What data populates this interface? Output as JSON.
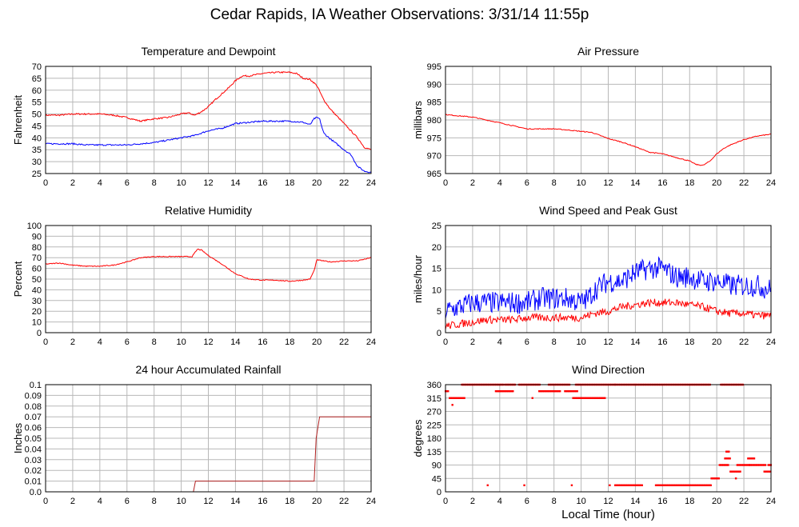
{
  "title": "Cedar Rapids, IA Weather Observations: 3/31/14 11:55p",
  "xlabel": "Local Time (hour)",
  "colors": {
    "red": "#ff0000",
    "blue": "#0000ff",
    "grid": "#b8b8b8"
  },
  "chart_data": [
    {
      "id": "temp",
      "type": "line",
      "title": "Temperature and Dewpoint",
      "ylabel": "Fahrenheit",
      "xlim": [
        0,
        24
      ],
      "ylim": [
        25,
        70
      ],
      "xticks": [
        0,
        2,
        4,
        6,
        8,
        10,
        12,
        14,
        16,
        18,
        20,
        22,
        24
      ],
      "yticks": [
        25,
        30,
        35,
        40,
        45,
        50,
        55,
        60,
        65,
        70
      ],
      "grid": true,
      "series": [
        {
          "color": "#ff0000",
          "noise": 0.3,
          "x": [
            0,
            1,
            2,
            3,
            4,
            5,
            6,
            7,
            8,
            9,
            10,
            10.5,
            11,
            11.5,
            12,
            12.5,
            13,
            13.5,
            14,
            14.5,
            15,
            16,
            17,
            18,
            18.5,
            19,
            19.5,
            20,
            20.5,
            21,
            22,
            23,
            23.5,
            24
          ],
          "y": [
            49.5,
            49.5,
            50,
            50,
            50,
            49.5,
            48.5,
            47,
            48,
            48.5,
            50,
            50.5,
            49.5,
            51,
            53,
            56,
            58.5,
            61,
            64,
            66,
            66,
            67,
            67.5,
            67.5,
            67,
            65,
            64.5,
            62,
            56,
            52,
            46,
            40,
            36,
            35
          ]
        },
        {
          "color": "#0000ff",
          "noise": 0.3,
          "x": [
            0,
            1,
            2,
            3,
            4,
            5,
            6,
            7,
            8,
            9,
            10,
            11,
            11.5,
            12,
            13,
            14,
            15,
            16,
            17,
            18,
            19,
            19.5,
            19.8,
            20,
            20.2,
            20.5,
            21,
            22,
            22.5,
            23,
            23.5,
            24
          ],
          "y": [
            37.5,
            37.5,
            37.5,
            37,
            37,
            37,
            37,
            37.5,
            38,
            39,
            40,
            41,
            42,
            43,
            44,
            46,
            46.5,
            47,
            47,
            47,
            46.5,
            45.5,
            48,
            48.5,
            48,
            42,
            39.5,
            35,
            33,
            28,
            26,
            25.5
          ]
        }
      ]
    },
    {
      "id": "pressure",
      "type": "line",
      "title": "Air Pressure",
      "ylabel": "millibars",
      "xlim": [
        0,
        24
      ],
      "ylim": [
        965,
        995
      ],
      "xticks": [
        0,
        2,
        4,
        6,
        8,
        10,
        12,
        14,
        16,
        18,
        20,
        22,
        24
      ],
      "yticks": [
        965,
        970,
        975,
        980,
        985,
        990,
        995
      ],
      "grid": true,
      "series": [
        {
          "color": "#ff0000",
          "noise": 0.12,
          "x": [
            0,
            2,
            4,
            6,
            7,
            8,
            9,
            10,
            10.8,
            12,
            13,
            14,
            15,
            16,
            17,
            18,
            18.5,
            19,
            19.5,
            20,
            20.5,
            21,
            22,
            23,
            24
          ],
          "y": [
            981.5,
            980.8,
            979.2,
            977.5,
            977.5,
            977.5,
            977.2,
            976.8,
            976.5,
            974.8,
            973.8,
            972.5,
            971,
            970.5,
            969.5,
            968.5,
            967.5,
            967.3,
            968.5,
            970.5,
            972,
            973,
            974.5,
            975.5,
            976
          ]
        }
      ]
    },
    {
      "id": "rh",
      "type": "line",
      "title": "Relative Humidity",
      "ylabel": "Percent",
      "xlim": [
        0,
        24
      ],
      "ylim": [
        0,
        100
      ],
      "xticks": [
        0,
        2,
        4,
        6,
        8,
        10,
        12,
        14,
        16,
        18,
        20,
        22,
        24
      ],
      "yticks": [
        0,
        10,
        20,
        30,
        40,
        50,
        60,
        70,
        80,
        90,
        100
      ],
      "grid": true,
      "series": [
        {
          "color": "#ff0000",
          "noise": 0.4,
          "x": [
            0,
            1,
            2,
            3,
            4,
            5,
            6,
            7,
            8,
            9,
            10,
            10.8,
            11.2,
            11.5,
            12,
            13,
            14,
            15,
            16,
            17,
            18,
            19,
            19.5,
            19.8,
            20,
            20.5,
            21,
            22,
            23,
            24
          ],
          "y": [
            64,
            65,
            63,
            62,
            62,
            63,
            66,
            70,
            71,
            71,
            71,
            71,
            78,
            77,
            72,
            64,
            55,
            50,
            49,
            49,
            48,
            49,
            50,
            58,
            68,
            67,
            66,
            67,
            67,
            70
          ]
        }
      ]
    },
    {
      "id": "wind",
      "type": "line",
      "title": "Wind Speed and Peak Gust",
      "ylabel": "miles/hour",
      "xlim": [
        0,
        24
      ],
      "ylim": [
        0,
        25
      ],
      "xticks": [
        0,
        2,
        4,
        6,
        8,
        10,
        12,
        14,
        16,
        18,
        20,
        22,
        24
      ],
      "yticks": [
        0,
        5,
        10,
        15,
        20,
        25
      ],
      "grid": true,
      "series": [
        {
          "color": "#0000ff",
          "noise": 2.6,
          "x": [
            0,
            1,
            2,
            3,
            4,
            5,
            6,
            7,
            8,
            9,
            10,
            10.5,
            11,
            12,
            13,
            14,
            15,
            16,
            17,
            18,
            19,
            20,
            21,
            22,
            23,
            24
          ],
          "y": [
            5,
            6,
            7,
            7,
            7,
            7,
            7,
            8,
            8,
            8,
            7,
            8,
            10,
            12,
            12,
            14,
            15,
            15,
            13,
            13,
            12,
            12,
            11,
            11,
            11,
            10
          ]
        },
        {
          "color": "#ff0000",
          "noise": 0.9,
          "x": [
            0,
            1,
            2,
            3,
            4,
            5,
            6,
            7,
            8,
            9,
            10,
            11,
            12,
            13,
            14,
            15,
            16,
            17,
            18,
            19,
            20,
            21,
            22,
            23,
            24
          ],
          "y": [
            1.5,
            2,
            2.5,
            3,
            3,
            3,
            3.5,
            3.5,
            3.5,
            3.5,
            3.5,
            4.5,
            5,
            6,
            6.5,
            7,
            7,
            7,
            6.5,
            6,
            5,
            4.5,
            4.5,
            4,
            4
          ]
        }
      ]
    },
    {
      "id": "rain",
      "type": "line",
      "title": "24 hour Accumulated Rainfall",
      "ylabel": "Inches",
      "xlim": [
        0,
        24
      ],
      "ylim": [
        0,
        0.1
      ],
      "xticks": [
        0,
        2,
        4,
        6,
        8,
        10,
        12,
        14,
        16,
        18,
        20,
        22,
        24
      ],
      "yticks": [
        0,
        0.01,
        0.02,
        0.03,
        0.04,
        0.05,
        0.06,
        0.07,
        0.08,
        0.09,
        0.1
      ],
      "ytick_labels": [
        "0.0",
        "0.01",
        "0.02",
        "0.03",
        "0.04",
        "0.05",
        "0.06",
        "0.07",
        "0.08",
        "0.09",
        "0.1"
      ],
      "grid": true,
      "series": [
        {
          "color": "#b22222",
          "noise": 0,
          "x": [
            0,
            10.9,
            11.05,
            19.8,
            19.95,
            20.2,
            24
          ],
          "y": [
            0,
            0,
            0.01,
            0.01,
            0.05,
            0.07,
            0.07
          ]
        }
      ]
    },
    {
      "id": "dir",
      "type": "scatter",
      "title": "Wind Direction",
      "ylabel": "degrees",
      "xlim": [
        0,
        24
      ],
      "ylim": [
        0,
        360
      ],
      "xticks": [
        0,
        2,
        4,
        6,
        8,
        10,
        12,
        14,
        16,
        18,
        20,
        22,
        24
      ],
      "yticks": [
        0,
        45,
        90,
        135,
        180,
        225,
        270,
        315,
        360
      ],
      "grid": true,
      "series": [
        {
          "color": "#ff0000",
          "points": [
            [
              0,
              0.25,
              338
            ],
            [
              0.3,
              1.4,
              315
            ],
            [
              1.2,
              4.3,
              360
            ],
            [
              3.7,
              5.0,
              338
            ],
            [
              4.4,
              5.2,
              360
            ],
            [
              5.4,
              7.0,
              360
            ],
            [
              6.9,
              8.5,
              338
            ],
            [
              7.6,
              9.2,
              360
            ],
            [
              8.8,
              9.7,
              338
            ],
            [
              9.4,
              11.8,
              315
            ],
            [
              9.6,
              12.5,
              360
            ],
            [
              12.5,
              14.0,
              360
            ],
            [
              14.0,
              19.5,
              360
            ],
            [
              20.3,
              22.0,
              360
            ],
            [
              12.5,
              14.5,
              22
            ],
            [
              15.5,
              19.6,
              22
            ],
            [
              19.6,
              20.2,
              45
            ],
            [
              20.2,
              20.9,
              90
            ],
            [
              20.6,
              21.0,
              112
            ],
            [
              20.7,
              20.9,
              135
            ],
            [
              21.0,
              21.8,
              68
            ],
            [
              21.5,
              22.4,
              90
            ],
            [
              22.3,
              22.8,
              112
            ],
            [
              22.4,
              23.6,
              90
            ],
            [
              23.5,
              24,
              68
            ],
            [
              23.8,
              24,
              90
            ]
          ],
          "dots": [
            [
              0.5,
              292
            ],
            [
              3.1,
              22
            ],
            [
              5.8,
              22
            ],
            [
              9.3,
              22
            ],
            [
              6.4,
              315
            ],
            [
              12.1,
              22
            ],
            [
              21.4,
              45
            ]
          ]
        }
      ]
    }
  ]
}
